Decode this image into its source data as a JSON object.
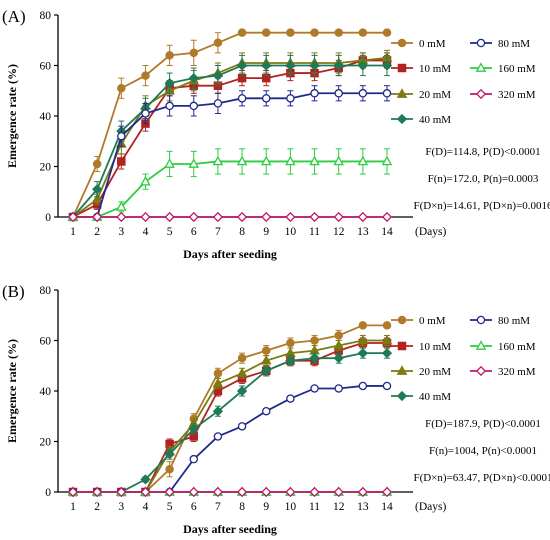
{
  "chart_data": [
    {
      "type": "line",
      "panel_label": "(A)",
      "xlabel": "Days after seeding",
      "ylabel": "Emergence rate (%)",
      "x_unit_label": "(Days)",
      "x": [
        1,
        2,
        3,
        4,
        5,
        6,
        7,
        8,
        9,
        10,
        11,
        12,
        13,
        14
      ],
      "x_tick_labels": [
        "1",
        "2",
        "3",
        "4",
        "5",
        "6",
        "7",
        "8",
        "9",
        "10",
        "11",
        "12",
        "13",
        "14"
      ],
      "ylim": [
        0,
        80
      ],
      "y_ticks": [
        0,
        20,
        40,
        60,
        80
      ],
      "y_tick_labels": [
        "0",
        "20",
        "40",
        "60",
        "80"
      ],
      "legend_placement": "right",
      "series": [
        {
          "name": "0 mM",
          "color": "#b07a2a",
          "marker": "circle",
          "values": [
            0,
            21,
            51,
            56,
            64,
            65,
            69,
            73,
            73,
            73,
            73,
            73,
            73,
            73
          ],
          "errors": [
            0,
            3,
            4,
            4,
            4,
            5,
            4,
            1,
            1,
            1,
            1,
            1,
            1,
            1
          ]
        },
        {
          "name": "10 mM",
          "color": "#b22222",
          "marker": "square",
          "values": [
            0,
            5,
            22,
            37,
            51,
            52,
            52,
            55,
            55,
            57,
            57,
            59,
            62,
            62
          ],
          "errors": [
            0,
            2,
            3,
            3,
            3,
            3,
            3,
            3,
            3,
            3,
            3,
            3,
            3,
            3
          ]
        },
        {
          "name": "20 mM",
          "color": "#7c7a10",
          "marker": "triangle",
          "values": [
            0,
            7,
            29,
            44,
            50,
            54,
            57,
            61,
            61,
            61,
            61,
            61,
            62,
            63
          ],
          "errors": [
            0,
            2,
            4,
            4,
            4,
            4,
            4,
            4,
            4,
            4,
            4,
            4,
            3,
            3
          ]
        },
        {
          "name": "40 mM",
          "color": "#1f7a55",
          "marker": "diamond",
          "values": [
            0,
            11,
            34,
            43,
            53,
            55,
            56,
            60,
            60,
            60,
            60,
            60,
            60,
            60
          ],
          "errors": [
            0,
            3,
            4,
            4,
            4,
            4,
            4,
            4,
            4,
            4,
            4,
            4,
            4,
            4
          ]
        },
        {
          "name": "80 mM",
          "color": "#1f2a8a",
          "marker": "circle-open",
          "values": [
            0,
            0,
            32,
            41,
            44,
            44,
            45,
            47,
            47,
            47,
            49,
            49,
            49,
            49
          ],
          "errors": [
            0,
            0,
            4,
            4,
            4,
            4,
            4,
            3,
            3,
            3,
            3,
            3,
            3,
            3
          ]
        },
        {
          "name": "160 mM",
          "color": "#2ecc40",
          "marker": "triangle-open",
          "values": [
            0,
            0,
            4,
            14,
            21,
            21,
            22,
            22,
            22,
            22,
            22,
            22,
            22,
            22
          ],
          "errors": [
            0,
            0,
            2,
            3,
            5,
            5,
            5,
            5,
            5,
            5,
            5,
            5,
            5,
            5
          ]
        },
        {
          "name": "320 mM",
          "color": "#c0186a",
          "marker": "diamond-open",
          "values": [
            0,
            0,
            0,
            0,
            0,
            0,
            0,
            0,
            0,
            0,
            0,
            0,
            0,
            0
          ],
          "errors": [
            0,
            0,
            0,
            0,
            0,
            0,
            0,
            0,
            0,
            0,
            0,
            0,
            0,
            0
          ]
        }
      ],
      "annotations": [
        "F(D)=114.8, P(D)<0.0001",
        "F(n)=172.0, P(n)=0.0003",
        "F(D×n)=14.61, P(D×n)=0.0016"
      ]
    },
    {
      "type": "line",
      "panel_label": "(B)",
      "xlabel": "Days after seeding",
      "ylabel": "Emergence rate (%)",
      "x_unit_label": "(Days)",
      "x": [
        1,
        2,
        3,
        4,
        5,
        6,
        7,
        8,
        9,
        10,
        11,
        12,
        13,
        14
      ],
      "x_tick_labels": [
        "1",
        "2",
        "3",
        "4",
        "5",
        "6",
        "7",
        "8",
        "9",
        "10",
        "11",
        "12",
        "13",
        "14"
      ],
      "ylim": [
        0,
        80
      ],
      "y_ticks": [
        0,
        20,
        40,
        60,
        80
      ],
      "y_tick_labels": [
        "0",
        "20",
        "40",
        "60",
        "80"
      ],
      "legend_placement": "right",
      "series": [
        {
          "name": "0 mM",
          "color": "#b07a2a",
          "marker": "circle",
          "values": [
            0,
            0,
            0,
            0,
            9,
            29,
            47,
            53,
            56,
            59,
            60,
            62,
            66,
            66
          ],
          "errors": [
            0,
            0,
            0,
            0,
            3,
            2,
            2,
            2,
            2,
            2,
            2,
            2,
            1,
            1
          ]
        },
        {
          "name": "10 mM",
          "color": "#b22222",
          "marker": "square",
          "values": [
            0,
            0,
            0,
            0,
            19,
            22,
            40,
            45,
            48,
            52,
            52,
            56,
            59,
            59
          ],
          "errors": [
            0,
            0,
            0,
            0,
            2,
            2,
            2,
            2,
            2,
            2,
            2,
            2,
            2,
            2
          ]
        },
        {
          "name": "20 mM",
          "color": "#7c7a10",
          "marker": "triangle",
          "values": [
            0,
            0,
            0,
            0,
            16,
            27,
            43,
            47,
            52,
            55,
            56,
            58,
            60,
            60
          ],
          "errors": [
            0,
            0,
            0,
            0,
            2,
            2,
            2,
            2,
            2,
            2,
            2,
            2,
            2,
            2
          ]
        },
        {
          "name": "40 mM",
          "color": "#1f7a55",
          "marker": "diamond",
          "values": [
            0,
            0,
            0,
            5,
            15,
            25,
            32,
            40,
            48,
            52,
            53,
            53,
            55,
            55
          ],
          "errors": [
            0,
            0,
            0,
            1,
            2,
            2,
            2,
            2,
            2,
            2,
            2,
            2,
            2,
            2
          ]
        },
        {
          "name": "80 mM",
          "color": "#1f2a8a",
          "marker": "circle-open",
          "values": [
            0,
            0,
            0,
            0,
            0,
            13,
            22,
            26,
            32,
            37,
            41,
            41,
            42,
            42
          ],
          "errors": [
            0,
            0,
            0,
            0,
            0,
            1,
            1,
            1,
            1,
            1,
            1,
            1,
            1,
            1
          ]
        },
        {
          "name": "160 mM",
          "color": "#2ecc40",
          "marker": "triangle-open",
          "values": [
            0,
            0,
            0,
            0,
            0,
            0,
            0,
            0,
            0,
            0,
            0,
            0,
            0,
            0
          ],
          "errors": [
            0,
            0,
            0,
            0,
            0,
            0,
            0,
            0,
            0,
            0,
            0,
            0,
            0,
            0
          ]
        },
        {
          "name": "320 mM",
          "color": "#c0186a",
          "marker": "diamond-open",
          "values": [
            0,
            0,
            0,
            0,
            0,
            0,
            0,
            0,
            0,
            0,
            0,
            0,
            0,
            0
          ],
          "errors": [
            0,
            0,
            0,
            0,
            0,
            0,
            0,
            0,
            0,
            0,
            0,
            0,
            0,
            0
          ]
        }
      ],
      "annotations": [
        "F(D)=187.9, P(D)<0.0001",
        "F(n)=1004, P(n)<0.0001",
        "F(D×n)=63.47, P(D×n)<0.0001"
      ]
    }
  ]
}
